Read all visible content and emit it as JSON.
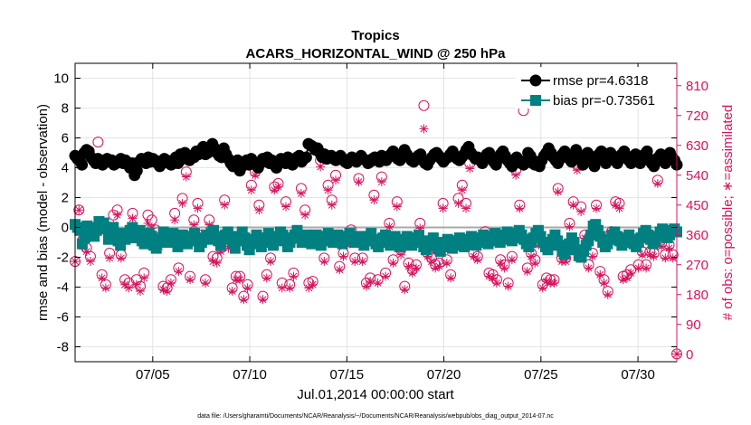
{
  "colors": {
    "rmse": "#000000",
    "bias": "#008080",
    "obs": "#d6135d",
    "grid": "#dcdcdc",
    "zero": "#a8a8a8"
  },
  "chart_data": {
    "type": "line",
    "title": "Tropics",
    "subtitle": "ACARS_HORIZONTAL_WIND @ 250 hPa",
    "xlabel": "Jul.01,2014 00:00:00 start",
    "ylabel": "rmse and bias (model - observation)",
    "y2label": "# of obs: o=possible; ∗=assimilated",
    "footnote": "data file: /Users/gharamti/Documents/NCAR/Reanalysis/~/Documents/NCAR/Reanalysis/webpub/obs_diag_output_2014-07.nc",
    "x_tick_labels": [
      "07/05",
      "07/10",
      "07/15",
      "07/20",
      "07/25",
      "07/30"
    ],
    "x_tick_days": [
      5,
      10,
      15,
      20,
      25,
      30
    ],
    "xlim_days": [
      1,
      32
    ],
    "ylim": [
      -9,
      11
    ],
    "y_ticks": [
      -8,
      -6,
      -4,
      -2,
      0,
      2,
      4,
      6,
      8,
      10
    ],
    "y2lim": [
      -22.5,
      877.5
    ],
    "y2_ticks": [
      0,
      90,
      180,
      270,
      360,
      450,
      540,
      630,
      720,
      810
    ],
    "grid": true,
    "legend_position": "top-right",
    "rmse_label": "rmse pr=4.6318",
    "bias_label": "bias pr=-0.73561",
    "series": [
      {
        "name": "rmse pr=4.6318",
        "axis": "left",
        "values": [
          4.8,
          4.6,
          4.5,
          4.2,
          5.0,
          5.2,
          5.1,
          4.7,
          4.5,
          4.3,
          4.6,
          4.4,
          4.2,
          4.5,
          4.6,
          4.4,
          4.5,
          4.2,
          4.3,
          4.4,
          4.6,
          4.3,
          4.5,
          4.2,
          4.0,
          4.3,
          3.5,
          3.8,
          4.4,
          4.6,
          4.5,
          4.3,
          4.7,
          4.4,
          4.6,
          4.5,
          4.3,
          4.1,
          4.4,
          4.6,
          4.5,
          4.3,
          4.2,
          4.5,
          4.7,
          4.3,
          4.9,
          4.6,
          5.0,
          4.7,
          4.5,
          4.8,
          4.7,
          5.1,
          4.9,
          5.2,
          5.4,
          4.9,
          5.0,
          5.2,
          5.6,
          5.3,
          5.0,
          4.8,
          4.7,
          5.3,
          4.9,
          4.6,
          4.3,
          4.1,
          4.4,
          4.5,
          3.8,
          4.1,
          4.3,
          4.5,
          4.2,
          4.6,
          4.4,
          4.2,
          4.0,
          4.3,
          4.6,
          4.5,
          4.7,
          4.3,
          4.5,
          4.2,
          4.0,
          4.4,
          4.6,
          4.5,
          4.3,
          4.7,
          4.4,
          4.2,
          4.5,
          4.7,
          4.8,
          4.4,
          4.6,
          4.7,
          5.6,
          5.5,
          5.4,
          5.2,
          5.3,
          5.0,
          4.7,
          4.9,
          4.6,
          4.7,
          4.8,
          4.6,
          4.5,
          4.7,
          4.8,
          4.6,
          4.4,
          4.3,
          4.5,
          4.7,
          4.6,
          4.4,
          4.6,
          4.8,
          4.6,
          4.5,
          4.3,
          4.4,
          4.6,
          4.7,
          4.5,
          4.4,
          4.8,
          4.6,
          4.5,
          4.7,
          4.9,
          5.1,
          4.8,
          4.6,
          4.5,
          4.7,
          5.2,
          4.9,
          4.7,
          4.5,
          4.4,
          4.6,
          4.8,
          4.9,
          4.5,
          4.3,
          4.2,
          4.5,
          4.7,
          4.9,
          5.0,
          4.8,
          4.6,
          4.4,
          4.6,
          4.7,
          4.9,
          5.1,
          4.8,
          4.6,
          4.5,
          4.7,
          4.9,
          5.2,
          5.4,
          5.0,
          4.8,
          4.6,
          4.7,
          4.5,
          4.3,
          4.6,
          4.9,
          5.0,
          4.7,
          4.4,
          4.2,
          4.6,
          4.9,
          5.1,
          4.8,
          4.5,
          4.3,
          4.1,
          4.4,
          4.7,
          4.5,
          4.3,
          4.2,
          4.4,
          5.0,
          4.8,
          4.3,
          4.2,
          4.4,
          4.1,
          4.5,
          4.8,
          5.0,
          5.3,
          5.0,
          4.7,
          4.5,
          4.3,
          4.6,
          4.9,
          5.1,
          4.8,
          4.6,
          4.4,
          4.8,
          5.2,
          4.9,
          4.5,
          4.2,
          4.6,
          5.0,
          4.8,
          4.4,
          4.1,
          4.5,
          4.9,
          5.1,
          4.6,
          4.3,
          4.7,
          5.0,
          4.8,
          4.5,
          4.3,
          4.6,
          4.9,
          5.1,
          4.8,
          4.5,
          4.3,
          4.6,
          4.9,
          4.5,
          4.3,
          4.6,
          4.9,
          5.1,
          4.6,
          4.3,
          4.1,
          4.4,
          4.7,
          4.9,
          4.6,
          4.3,
          4.8,
          5.0,
          4.7,
          4.5,
          4.2
        ]
      },
      {
        "name": "bias pr=-0.73561",
        "axis": "left",
        "values": [
          0.2,
          0.0,
          -0.2,
          -1.1,
          -0.7,
          0.1,
          0.0,
          -0.3,
          -0.6,
          -0.2,
          0.4,
          0.1,
          0.3,
          -0.1,
          -0.8,
          -0.5,
          0.0,
          -0.6,
          -0.9,
          -1.2,
          -0.4,
          -0.8,
          -0.6,
          -0.2,
          0.0,
          -0.7,
          -0.5,
          -0.2,
          -0.9,
          -1.1,
          -0.7,
          -0.4,
          -0.6,
          -1.2,
          -1.4,
          -1.0,
          -0.8,
          -0.3,
          -0.6,
          -1.0,
          -0.7,
          -0.4,
          -0.9,
          -1.3,
          -0.8,
          -0.5,
          -0.7,
          -1.1,
          -0.8,
          -0.6,
          -0.4,
          -0.9,
          -1.3,
          -1.0,
          -0.7,
          -0.5,
          -0.8,
          -0.4,
          -0.2,
          -0.6,
          -0.9,
          -1.2,
          -0.8,
          -0.5,
          -0.3,
          -0.6,
          -1.0,
          -1.4,
          -0.9,
          -0.6,
          -0.3,
          -0.7,
          -1.2,
          -1.5,
          -1.1,
          -0.8,
          -0.5,
          -0.9,
          -1.3,
          -1.0,
          -0.7,
          -0.4,
          -0.8,
          -1.2,
          -0.9,
          -0.6,
          -0.3,
          -0.5,
          -0.9,
          -1.3,
          -1.0,
          -0.7,
          -0.5,
          -0.2,
          -0.6,
          -1.0,
          -0.8,
          -0.5,
          -0.7,
          -1.1,
          -0.8,
          -0.5,
          -0.9,
          -1.2,
          -0.9,
          -0.6,
          -0.4,
          -0.7,
          -1.0,
          -0.7,
          -0.5,
          -0.8,
          -1.1,
          -0.8,
          -0.6,
          -0.4,
          -0.7,
          -1.0,
          -0.8,
          -0.6,
          -0.9,
          -1.2,
          -0.9,
          -0.6,
          -0.4,
          -0.8,
          -1.1,
          -1.3,
          -1.0,
          -0.7,
          -0.5,
          -0.8,
          -1.2,
          -0.9,
          -0.6,
          -1.0,
          -1.3,
          -1.1,
          -0.8,
          -0.6,
          -0.9,
          -1.2,
          -1.0,
          -0.7,
          -0.5,
          -0.9,
          -1.3,
          -1.5,
          -1.2,
          -0.9,
          -0.7,
          -1.0,
          -1.4,
          -1.6,
          -1.3,
          -1.0,
          -0.8,
          -1.1,
          -1.4,
          -1.2,
          -0.9,
          -0.7,
          -1.0,
          -1.3,
          -1.1,
          -0.8,
          -0.6,
          -0.9,
          -1.2,
          -1.0,
          -0.7,
          -0.5,
          -0.8,
          -1.1,
          -0.9,
          -0.6,
          -0.4,
          -0.7,
          -1.0,
          -0.8,
          -0.5,
          -0.3,
          -0.6,
          -0.9,
          -0.7,
          -0.4,
          -0.2,
          -0.5,
          -0.8,
          -1.1,
          -1.3,
          -1.0,
          -0.7,
          -0.4,
          -0.2,
          -0.6,
          -1.0,
          -1.3,
          -1.5,
          -1.2,
          -0.8,
          -0.5,
          -0.9,
          -1.2,
          -1.6,
          -1.8,
          -1.5,
          -1.1,
          -0.7,
          -1.0,
          -1.5,
          -1.9,
          -2.0,
          -1.6,
          -1.2,
          -0.9,
          -0.5,
          0.1,
          0.2,
          -0.2,
          -0.6,
          -1.0,
          -1.3,
          -1.1,
          -0.8,
          -0.5,
          -0.3,
          -0.6,
          -0.9,
          -1.2,
          -1.0,
          -0.7,
          -0.5,
          -0.8,
          -1.1,
          -1.3,
          -1.0,
          -0.7,
          -0.4,
          -0.2,
          -0.5,
          -0.8,
          -1.1,
          -0.9,
          -0.6,
          -0.3,
          -0.1,
          -0.4,
          -0.7,
          -0.5,
          -0.2,
          -0.1,
          -0.3
        ]
      },
      {
        "name": "obs possible (o)",
        "axis": "right",
        "values": [
          280,
          435,
          345,
          320,
          295,
          375,
          640,
          240,
          210,
          305,
          420,
          435,
          300,
          225,
          215,
          425,
          225,
          205,
          245,
          420,
          405,
          375,
          335,
          205,
          200,
          225,
          425,
          260,
          470,
          550,
          235,
          405,
          455,
          360,
          225,
          405,
          295,
          290,
          320,
          465,
          340,
          200,
          235,
          235,
          175,
          210,
          510,
          550,
          450,
          175,
          240,
          290,
          505,
          515,
          215,
          460,
          210,
          245,
          350,
          500,
          435,
          215,
          220,
          355,
          585,
          290,
          510,
          465,
          540,
          265,
          305,
          340,
          375,
          290,
          530,
          290,
          215,
          230,
          480,
          225,
          535,
          245,
          395,
          285,
          460,
          315,
          205,
          275,
          255,
          270,
          395,
          750,
          305,
          290,
          270,
          275,
          455,
          285,
          240,
          340,
          470,
          510,
          455,
          575,
          305,
          295,
          355,
          370,
          245,
          240,
          225,
          285,
          270,
          215,
          295,
          555,
          450,
          735,
          260,
          305,
          285,
          340,
          210,
          230,
          225,
          225,
          500,
          290,
          290,
          395,
          460,
          570,
          445,
          360,
          270,
          305,
          450,
          250,
          225,
          190,
          370,
          460,
          455,
          235,
          240,
          255,
          340,
          270,
          310,
          270,
          310,
          305,
          525,
          335,
          300,
          330,
          300,
          1
        ]
      },
      {
        "name": "obs assimilated (∗)",
        "axis": "right",
        "values": [
          280,
          435,
          325,
          310,
          280,
          355,
          575,
          230,
          200,
          290,
          390,
          420,
          290,
          210,
          200,
          410,
          210,
          190,
          230,
          395,
          380,
          360,
          325,
          195,
          190,
          215,
          405,
          250,
          455,
          535,
          225,
          390,
          440,
          345,
          215,
          390,
          280,
          275,
          310,
          450,
          320,
          190,
          225,
          225,
          165,
          200,
          495,
          540,
          435,
          165,
          230,
          280,
          495,
          505,
          200,
          445,
          200,
          235,
          340,
          485,
          420,
          200,
          210,
          345,
          565,
          280,
          495,
          450,
          525,
          255,
          295,
          330,
          365,
          280,
          520,
          280,
          205,
          220,
          465,
          215,
          520,
          235,
          385,
          275,
          445,
          300,
          195,
          265,
          245,
          260,
          380,
          680,
          295,
          280,
          260,
          265,
          440,
          275,
          230,
          330,
          455,
          495,
          440,
          560,
          295,
          285,
          345,
          360,
          235,
          230,
          215,
          275,
          260,
          205,
          285,
          540,
          440,
          760,
          250,
          295,
          275,
          330,
          200,
          220,
          215,
          215,
          490,
          280,
          280,
          385,
          450,
          555,
          430,
          350,
          260,
          295,
          440,
          240,
          215,
          180,
          360,
          450,
          440,
          225,
          230,
          245,
          330,
          260,
          300,
          260,
          300,
          295,
          515,
          325,
          290,
          320,
          290,
          1
        ]
      }
    ]
  }
}
